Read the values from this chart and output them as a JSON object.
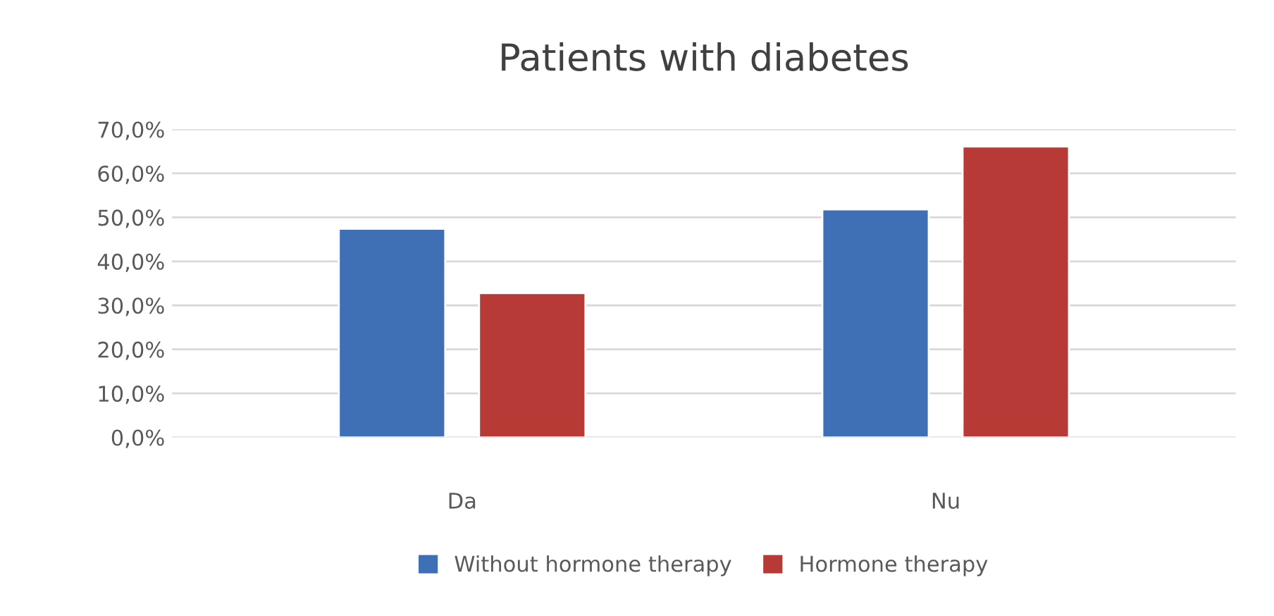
{
  "chart_data": {
    "type": "bar",
    "title": "Patients with diabetes",
    "categories": [
      "Da",
      "Nu"
    ],
    "series": [
      {
        "name": "Without hormone therapy",
        "color": "#3f6fb5",
        "values": [
          47.4,
          51.8
        ]
      },
      {
        "name": "Hormone therapy",
        "color": "#b83a37",
        "values": [
          32.8,
          66.1
        ]
      }
    ],
    "ylim": [
      0,
      70
    ],
    "yticks": [
      {
        "value": 0,
        "label": "0,0%"
      },
      {
        "value": 10,
        "label": "10,0%"
      },
      {
        "value": 20,
        "label": "20,0%"
      },
      {
        "value": 30,
        "label": "30,0%"
      },
      {
        "value": 40,
        "label": "40,0%"
      },
      {
        "value": 50,
        "label": "50,0%"
      },
      {
        "value": 60,
        "label": "60,0%"
      },
      {
        "value": 70,
        "label": "70,0%"
      }
    ],
    "grid": "y",
    "legend": "bottom"
  }
}
